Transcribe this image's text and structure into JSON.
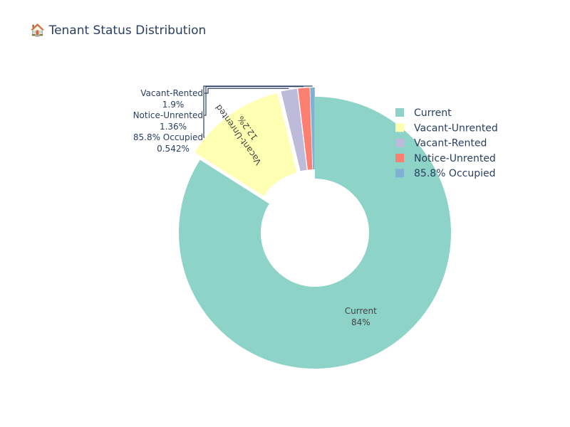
{
  "title": "🏠 Tenant Status Distribution",
  "chart_data": {
    "type": "pie",
    "hole": true,
    "legend_position": "top-right",
    "slices": [
      {
        "label": "Current",
        "percent_text": "84%",
        "value": 84.0,
        "color": "#8dd3c7",
        "pulled": false,
        "label_inside": true
      },
      {
        "label": "Vacant-Unrented",
        "percent_text": "12.2%",
        "value": 12.2,
        "color": "#ffffb3",
        "pulled": true,
        "label_inside": true
      },
      {
        "label": "Vacant-Rented",
        "percent_text": "1.9%",
        "value": 1.9,
        "color": "#bebada",
        "pulled": true,
        "label_inside": false
      },
      {
        "label": "Notice-Unrented",
        "percent_text": "1.36%",
        "value": 1.36,
        "color": "#fb8072",
        "pulled": true,
        "label_inside": false
      },
      {
        "label": "85.8% Occupied",
        "percent_text": "0.542%",
        "value": 0.542,
        "color": "#80b1d3",
        "pulled": true,
        "label_inside": false
      }
    ]
  }
}
